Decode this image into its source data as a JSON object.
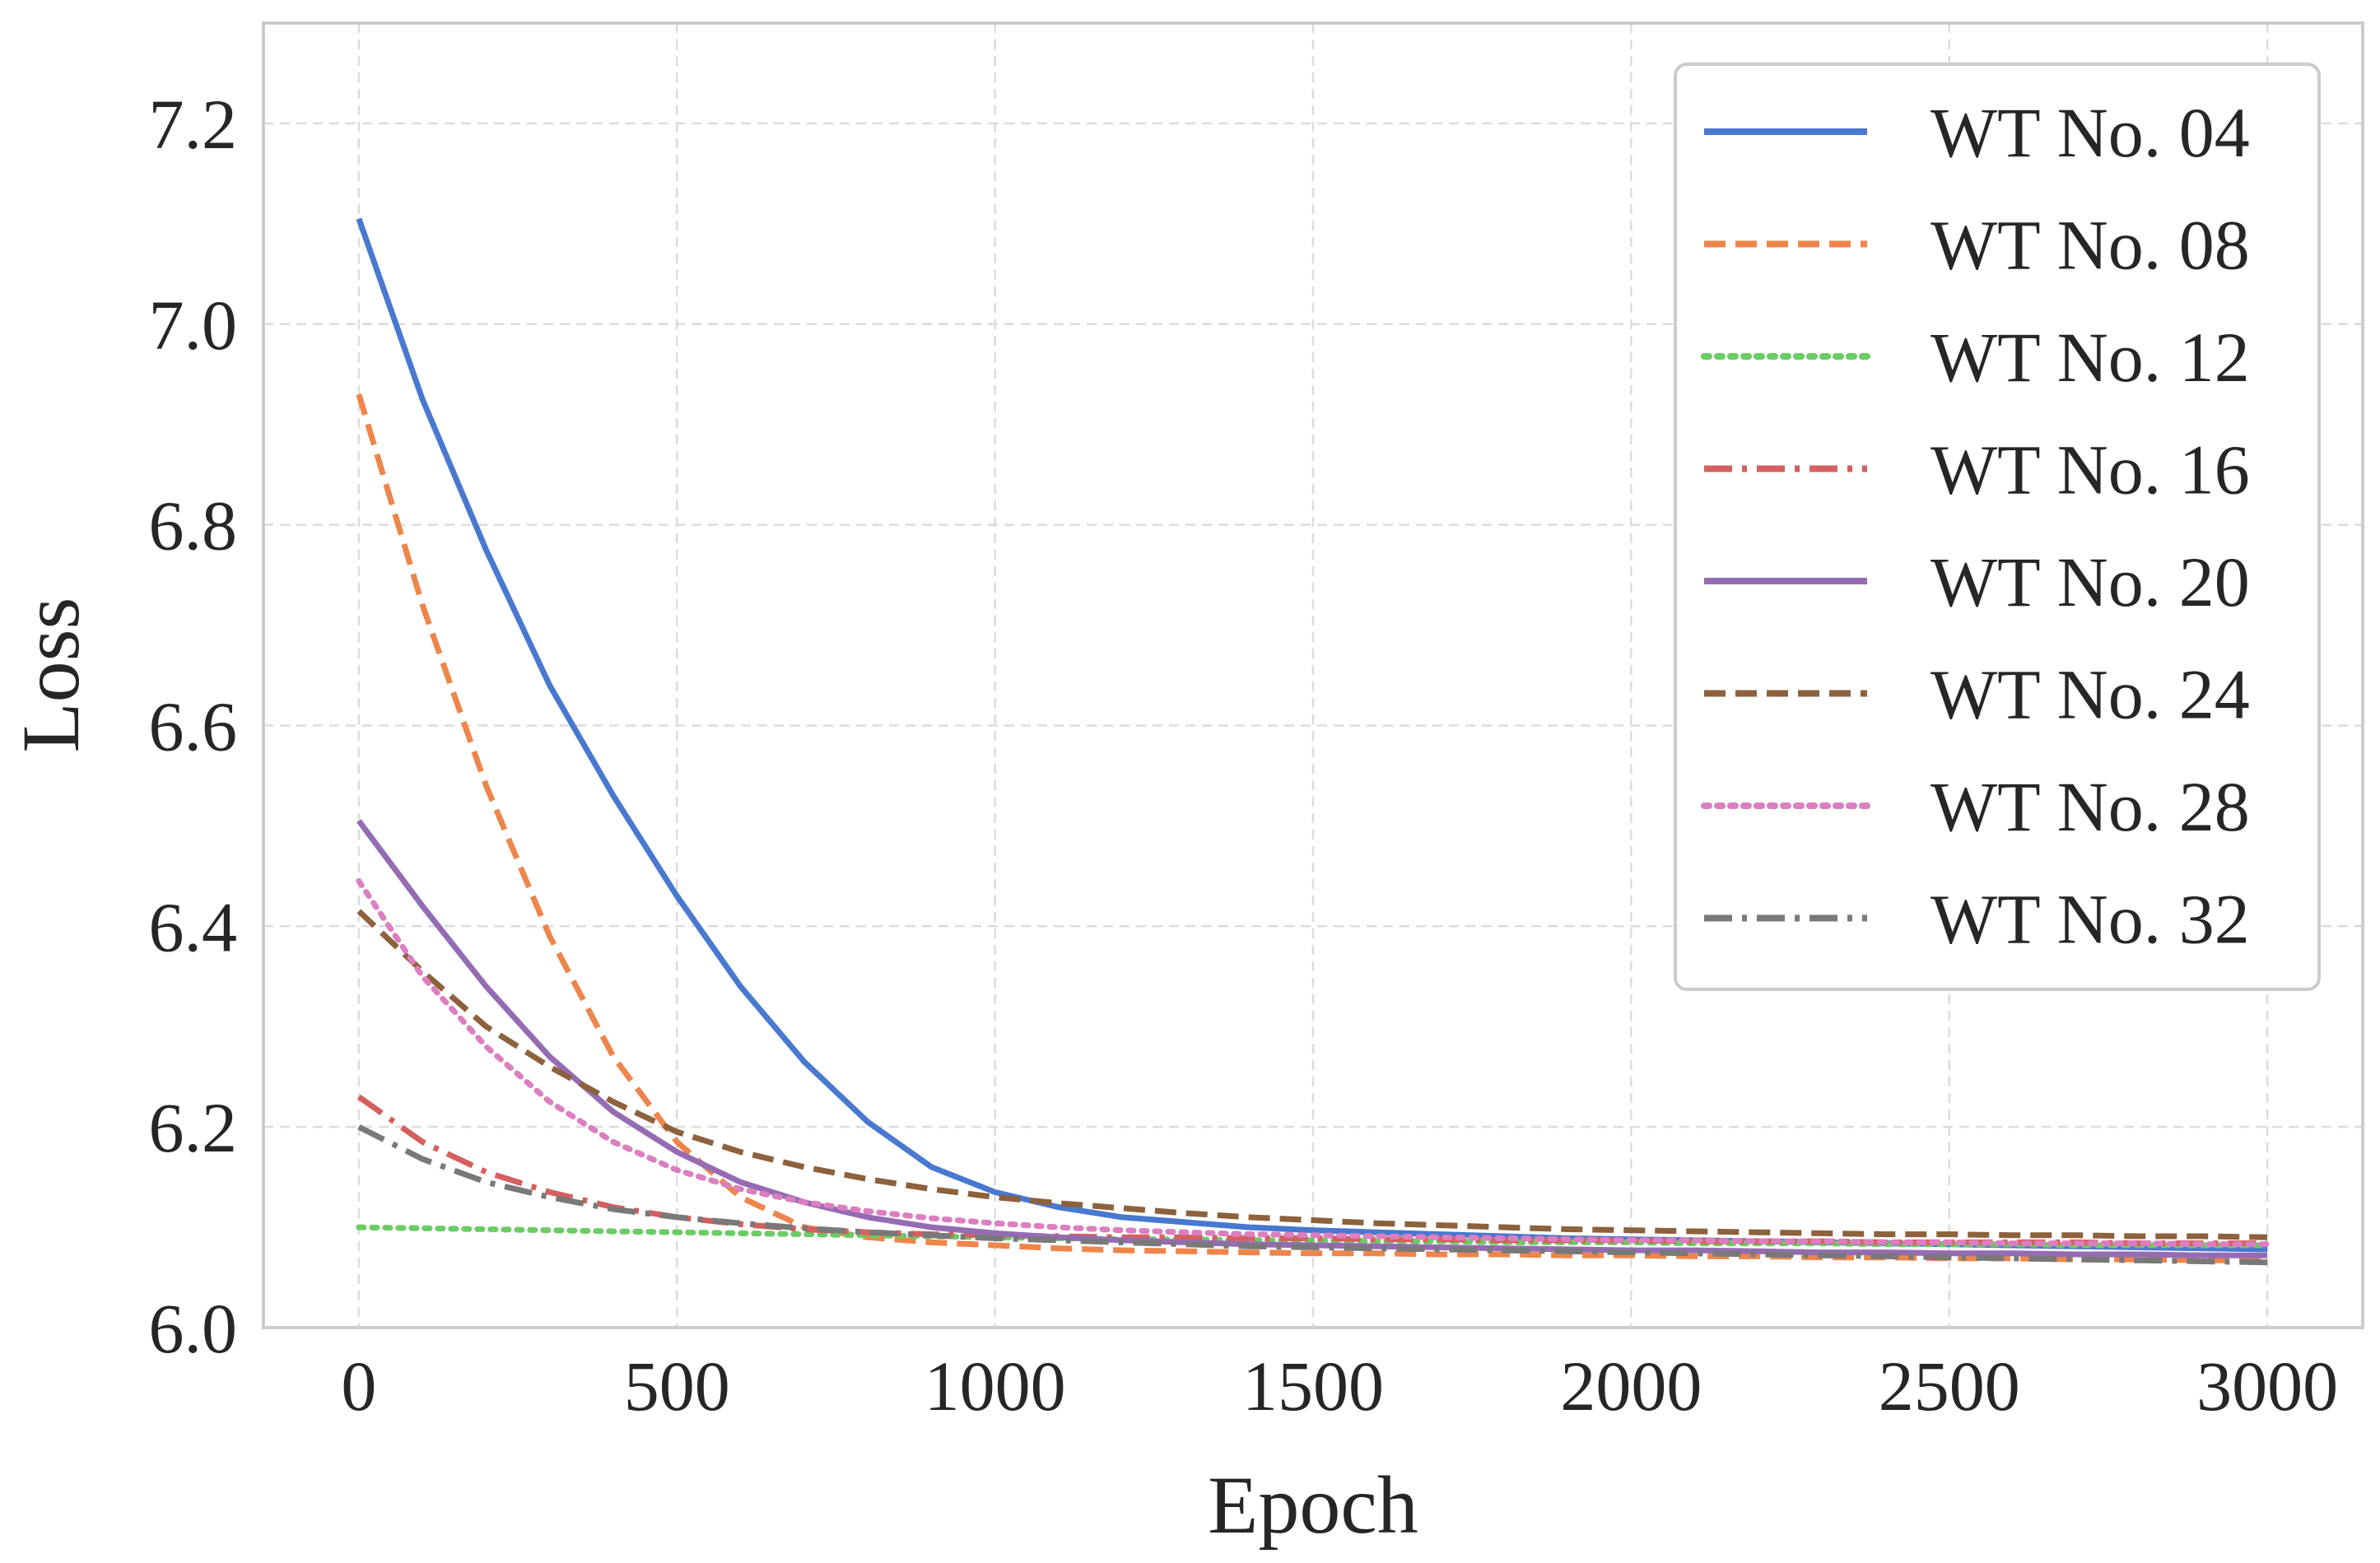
{
  "chart_data": {
    "type": "line",
    "title": "",
    "xlabel": "Epoch",
    "ylabel": "Loss",
    "xlim": [
      -150,
      3150
    ],
    "ylim": [
      6.0,
      7.3
    ],
    "xticks": [
      0,
      500,
      1000,
      1500,
      2000,
      2500,
      3000
    ],
    "xtick_labels": [
      "0",
      "500",
      "1000",
      "1500",
      "2000",
      "2500",
      "3000"
    ],
    "yticks": [
      6.0,
      6.2,
      6.4,
      6.6,
      6.8,
      7.0,
      7.2
    ],
    "ytick_labels": [
      "6.0",
      "6.2",
      "6.4",
      "6.6",
      "6.8",
      "7.0",
      "7.2"
    ],
    "grid": true,
    "legend_position": "top-right",
    "x": [
      0,
      100,
      200,
      300,
      400,
      500,
      600,
      700,
      800,
      900,
      1000,
      1100,
      1200,
      1300,
      1400,
      1500,
      1600,
      1700,
      1800,
      1900,
      2000,
      2100,
      2200,
      2300,
      2400,
      2500,
      2600,
      2700,
      2800,
      2900,
      3000
    ],
    "series": [
      {
        "name": "WT No. 04",
        "color": "#4878d0",
        "dash": "solid",
        "values": [
          7.105,
          6.925,
          6.775,
          6.64,
          6.53,
          6.43,
          6.34,
          6.265,
          6.205,
          6.16,
          6.135,
          6.12,
          6.11,
          6.105,
          6.1,
          6.097,
          6.095,
          6.093,
          6.091,
          6.089,
          6.088,
          6.087,
          6.086,
          6.085,
          6.084,
          6.083,
          6.082,
          6.081,
          6.08,
          6.079,
          6.078
        ]
      },
      {
        "name": "WT No. 08",
        "color": "#ee854a",
        "dash": "dashed",
        "values": [
          6.93,
          6.72,
          6.54,
          6.39,
          6.27,
          6.185,
          6.13,
          6.1,
          6.09,
          6.085,
          6.082,
          6.079,
          6.077,
          6.076,
          6.075,
          6.074,
          6.074,
          6.073,
          6.073,
          6.072,
          6.072,
          6.071,
          6.071,
          6.07,
          6.07,
          6.069,
          6.069,
          6.068,
          6.068,
          6.067,
          6.067
        ]
      },
      {
        "name": "WT No. 12",
        "color": "#6acc64",
        "dash": "dotted",
        "values": [
          6.1,
          6.099,
          6.098,
          6.097,
          6.096,
          6.095,
          6.094,
          6.093,
          6.092,
          6.091,
          6.09,
          6.089,
          6.088,
          6.088,
          6.087,
          6.087,
          6.086,
          6.086,
          6.085,
          6.085,
          6.085,
          6.084,
          6.084,
          6.084,
          6.083,
          6.083,
          6.083,
          6.082,
          6.082,
          6.082,
          6.082
        ]
      },
      {
        "name": "WT No. 16",
        "color": "#d65f5f",
        "dash": "dashdot",
        "values": [
          6.23,
          6.185,
          6.155,
          6.135,
          6.12,
          6.11,
          6.103,
          6.098,
          6.095,
          6.093,
          6.092,
          6.091,
          6.09,
          6.09,
          6.089,
          6.089,
          6.088,
          6.088,
          6.087,
          6.087,
          6.087,
          6.086,
          6.086,
          6.086,
          6.085,
          6.085,
          6.085,
          6.085,
          6.084,
          6.084,
          6.084
        ]
      },
      {
        "name": "WT No. 20",
        "color": "#956cb4",
        "dash": "solid",
        "values": [
          6.505,
          6.42,
          6.34,
          6.27,
          6.215,
          6.175,
          6.145,
          6.125,
          6.11,
          6.1,
          6.094,
          6.09,
          6.087,
          6.085,
          6.083,
          6.082,
          6.081,
          6.08,
          6.079,
          6.078,
          6.077,
          6.077,
          6.076,
          6.075,
          6.075,
          6.074,
          6.074,
          6.073,
          6.073,
          6.072,
          6.072
        ]
      },
      {
        "name": "WT No. 24",
        "color": "#8c613c",
        "dash": "dashed",
        "values": [
          6.415,
          6.355,
          6.3,
          6.26,
          6.225,
          6.195,
          6.175,
          6.16,
          6.148,
          6.138,
          6.13,
          6.124,
          6.119,
          6.114,
          6.11,
          6.107,
          6.104,
          6.102,
          6.1,
          6.098,
          6.097,
          6.096,
          6.095,
          6.094,
          6.093,
          6.093,
          6.092,
          6.092,
          6.091,
          6.091,
          6.09
        ]
      },
      {
        "name": "WT No. 28",
        "color": "#dc7ec0",
        "dash": "dotted",
        "values": [
          6.445,
          6.35,
          6.28,
          6.225,
          6.185,
          6.157,
          6.138,
          6.125,
          6.116,
          6.109,
          6.104,
          6.1,
          6.097,
          6.095,
          6.093,
          6.092,
          6.091,
          6.09,
          6.089,
          6.088,
          6.087,
          6.087,
          6.086,
          6.086,
          6.085,
          6.085,
          6.084,
          6.084,
          6.084,
          6.083,
          6.083
        ]
      },
      {
        "name": "WT No. 32",
        "color": "#797979",
        "dash": "dashdot",
        "values": [
          6.2,
          6.168,
          6.145,
          6.13,
          6.118,
          6.11,
          6.104,
          6.099,
          6.095,
          6.092,
          6.089,
          6.087,
          6.085,
          6.083,
          6.081,
          6.08,
          6.079,
          6.078,
          6.077,
          6.076,
          6.075,
          6.074,
          6.073,
          6.072,
          6.071,
          6.07,
          6.069,
          6.068,
          6.067,
          6.066,
          6.065
        ]
      }
    ]
  }
}
